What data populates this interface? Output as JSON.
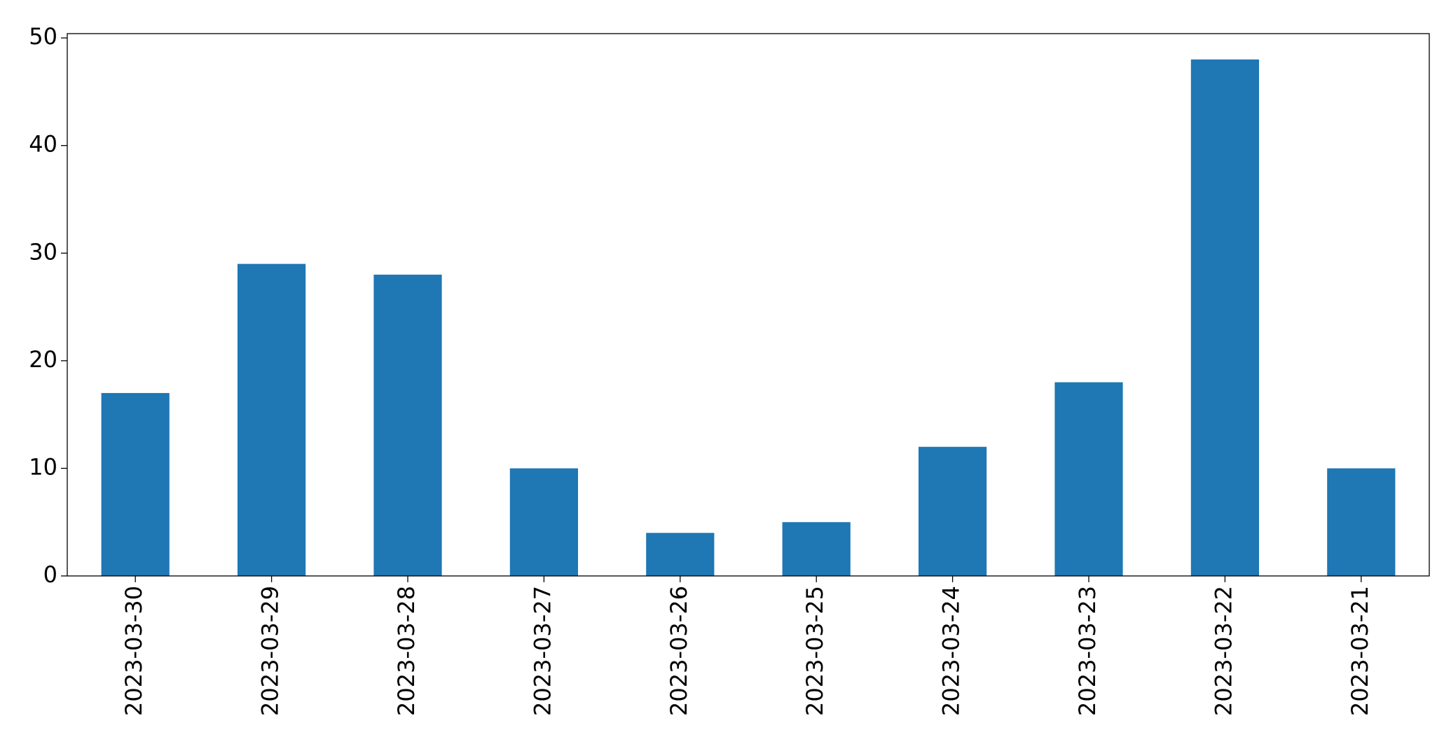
{
  "chart_data": {
    "type": "bar",
    "categories": [
      "2023-03-30",
      "2023-03-29",
      "2023-03-28",
      "2023-03-27",
      "2023-03-26",
      "2023-03-25",
      "2023-03-24",
      "2023-03-23",
      "2023-03-22",
      "2023-03-21"
    ],
    "values": [
      17,
      29,
      28,
      10,
      4,
      5,
      12,
      18,
      48,
      10
    ],
    "color": "#1f77b4",
    "ylim": [
      0,
      50.4
    ],
    "yticks": [
      0,
      10,
      20,
      30,
      40,
      50
    ],
    "grid": false
  }
}
